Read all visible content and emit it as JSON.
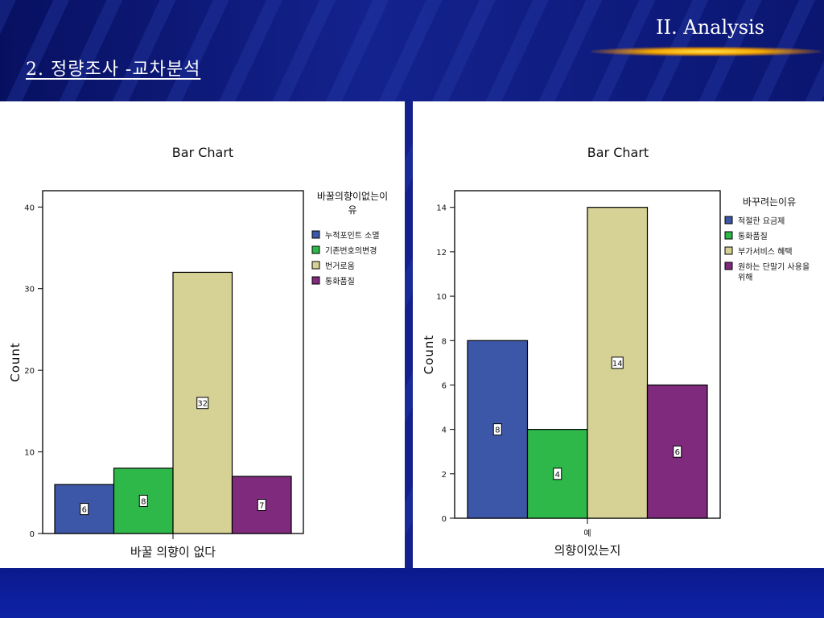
{
  "header": {
    "section": "II. Analysis",
    "title": "2.  정량조사 -교차분석"
  },
  "chart_data": [
    {
      "type": "bar",
      "title": "Bar Chart",
      "xlabel": "바꿀 의향이 없다",
      "ylabel": "Count",
      "ylim": [
        0,
        42
      ],
      "yticks": [
        0,
        10,
        20,
        30,
        40
      ],
      "legend_title": "바꿀의향이없는이유",
      "legend_position": "right",
      "series": [
        {
          "name": "누적포인트 소멸",
          "values": [
            6
          ],
          "color": "#3d57a8"
        },
        {
          "name": "기존번호의변경",
          "values": [
            8
          ],
          "color": "#2fb84a"
        },
        {
          "name": "번거로움",
          "values": [
            32
          ],
          "color": "#d6d295"
        },
        {
          "name": "통화품질",
          "values": [
            7
          ],
          "color": "#7f2a7c"
        }
      ]
    },
    {
      "type": "bar",
      "title": "Bar Chart",
      "xlabel": "의향이있는지",
      "ylabel": "Count",
      "categories": [
        "예"
      ],
      "ylim": [
        0,
        14.75
      ],
      "yticks": [
        0,
        2,
        4,
        6,
        8,
        10,
        12,
        14
      ],
      "legend_title": "바꾸려는이유",
      "legend_position": "right",
      "series": [
        {
          "name": "적절한 요금제",
          "values": [
            8
          ],
          "color": "#3d57a8"
        },
        {
          "name": "통화품질",
          "values": [
            4
          ],
          "color": "#2fb84a"
        },
        {
          "name": "부가서비스 혜택",
          "values": [
            14
          ],
          "color": "#d6d295"
        },
        {
          "name": "원하는 단말기 사용을 위해",
          "values": [
            6
          ],
          "color": "#7f2a7c"
        }
      ]
    }
  ]
}
